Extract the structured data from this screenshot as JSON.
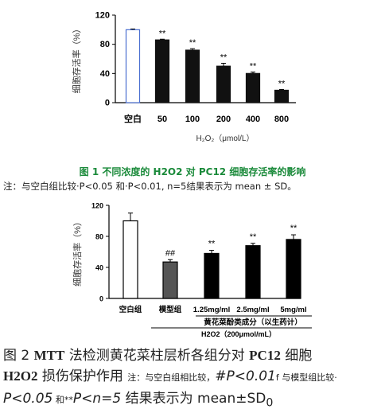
{
  "chart_data": [
    {
      "type": "bar",
      "categories": [
        "空白",
        "50",
        "100",
        "200",
        "400",
        "800"
      ],
      "values": [
        100,
        86,
        72,
        50,
        40,
        17
      ],
      "errors": [
        1,
        1,
        2,
        4,
        2,
        1
      ],
      "significance": [
        "",
        "**",
        "**",
        "**",
        "**",
        "**"
      ],
      "ylabel": "细胞存活率（%）",
      "xlabel": "H₂O₂（μmol/L）",
      "ylim": [
        0,
        120
      ],
      "yticks": [
        0,
        40,
        80,
        120
      ],
      "ytick_labels": [
        "0",
        "40",
        "80",
        "120"
      ],
      "grid": false,
      "colors": {
        "control_fill": "#ffffff",
        "control_stroke": "#4a6fd0",
        "bar": "#111111"
      }
    },
    {
      "type": "bar",
      "categories": [
        "空白组",
        "模型组",
        "1.25mg/ml",
        "2.5mg/ml",
        "5mg/ml"
      ],
      "values": [
        100,
        47,
        58,
        68,
        76
      ],
      "errors": [
        10,
        3,
        4,
        3,
        6
      ],
      "significance": [
        "",
        "##",
        "**",
        "**",
        "**"
      ],
      "ylabel": "细胞存活率（%）",
      "group_label": "黄花菜酚类成分（以生药计）",
      "xlabel": "H2O2（200μmol/mL）",
      "ylim": [
        0,
        120
      ],
      "yticks": [
        0,
        40,
        80,
        120
      ],
      "ytick_labels": [
        "0",
        "40",
        "80",
        "120"
      ],
      "grid": false,
      "colors": {
        "control": "#ffffff",
        "model": "#555555",
        "treated": "#000000"
      }
    }
  ],
  "captions": {
    "fig1_title_prefix": "图 1 不同浓度的 ",
    "fig1_title_b1": "H2O2",
    "fig1_title_mid": " 对 ",
    "fig1_title_b2": "PC12",
    "fig1_title_suffix": " 细胞存活率的影响",
    "fig1_note": "注：与空白组比较·P<0.05 和·P<0.01, n=5结果表示为 mean ± SD。",
    "fig2_title_a": "图 2 ",
    "fig2_title_b": "MTT",
    "fig2_title_c": " 法检测黄花菜柱层析各组分对 ",
    "fig2_title_d": "PC12",
    "fig2_title_e": " 细胞 ",
    "fig2_title_f": "H2O2",
    "fig2_title_g": " 损伤保护作用 ",
    "fig2_note_a": "注：与空白组相比较，",
    "fig2_note_b": "#P<0.01",
    "fig2_note_c": "f 与模型组比较·",
    "fig2_note_d": "P<0.05",
    "fig2_note_e": " 和**",
    "fig2_note_f": "P<n=5",
    "fig2_note_g": " 结果表示为 mean±SD",
    "fig2_note_h": "0"
  }
}
